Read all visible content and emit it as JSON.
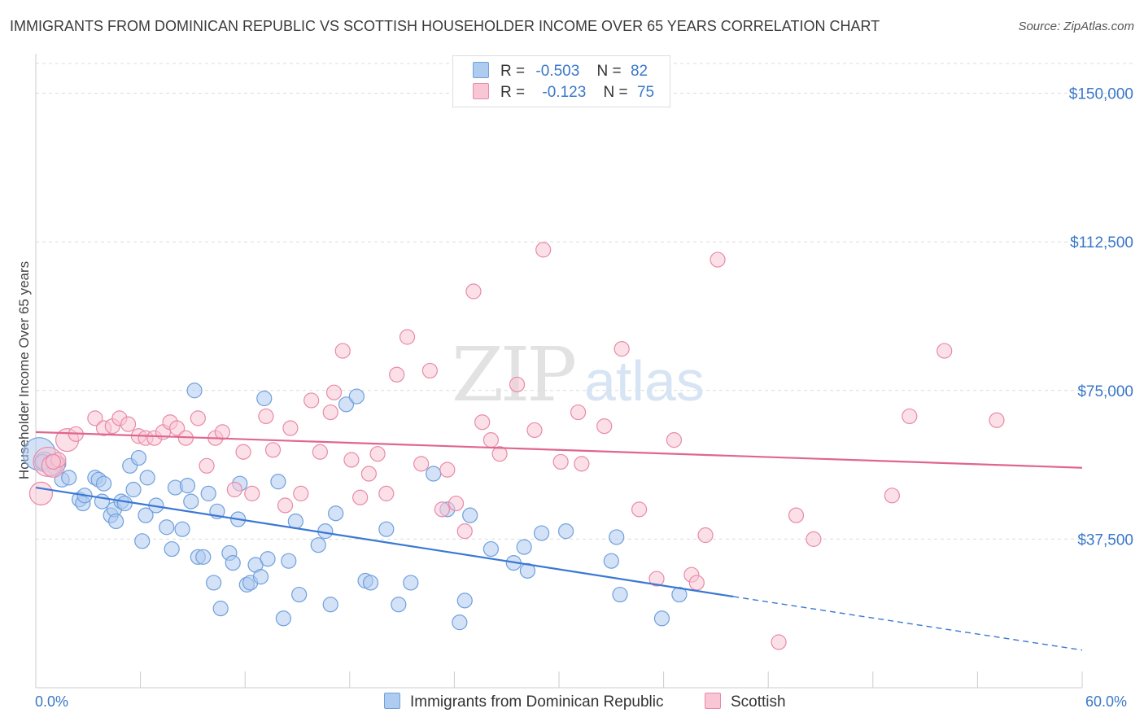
{
  "title": "IMMIGRANTS FROM DOMINICAN REPUBLIC VS SCOTTISH HOUSEHOLDER INCOME OVER 65 YEARS CORRELATION CHART",
  "source": "Source: ZipAtlas.com",
  "watermark": "ZIPatlas",
  "legend_stats": [
    {
      "r_label": "R =",
      "r_value": "-0.503",
      "n_label": "N =",
      "n_value": "82",
      "color": "#aecbf0",
      "border": "#6fa0dc"
    },
    {
      "r_label": "R =",
      "r_value": "-0.123",
      "n_label": "N =",
      "n_value": "75",
      "color": "#f9c6d6",
      "border": "#e88aa8"
    }
  ],
  "bottom_legend": [
    {
      "label": "Immigrants from Dominican Republic",
      "color": "#aecbf0"
    },
    {
      "label": "Scottish",
      "color": "#f9c6d6"
    }
  ],
  "chart_data": {
    "type": "scatter",
    "title": "IMMIGRANTS FROM DOMINICAN REPUBLIC VS SCOTTISH HOUSEHOLDER INCOME OVER 65 YEARS CORRELATION CHART",
    "xlabel": "",
    "ylabel": "Householder Income Over 65 years",
    "xlim": [
      0,
      60
    ],
    "ylim": [
      0,
      157500
    ],
    "x_tick_labels": [
      "0.0%",
      "60.0%"
    ],
    "y_ticks": [
      37500,
      75000,
      112500,
      150000
    ],
    "y_tick_labels": [
      "$37,500",
      "$75,000",
      "$112,500",
      "$150,000"
    ],
    "grid": "horizontal dashed",
    "legend_position": "top-center",
    "series": [
      {
        "name": "Immigrants from Dominican Republic",
        "color": "#6fa0dc",
        "fill": "#aecbf0",
        "trend": {
          "x0": 0,
          "y0": 50500,
          "x1": 40,
          "y1": 23000,
          "dash_to_x": 60,
          "dash_to_y": 9500
        },
        "points": [
          [
            0.2,
            59000
          ],
          [
            0.5,
            57000
          ],
          [
            0.9,
            56000
          ],
          [
            1.1,
            55500
          ],
          [
            1.5,
            52500
          ],
          [
            1.9,
            53000
          ],
          [
            2.5,
            47500
          ],
          [
            2.7,
            46500
          ],
          [
            2.8,
            48500
          ],
          [
            3.4,
            53000
          ],
          [
            3.6,
            52500
          ],
          [
            3.8,
            47000
          ],
          [
            3.9,
            51500
          ],
          [
            4.3,
            43500
          ],
          [
            4.5,
            45000
          ],
          [
            4.6,
            42000
          ],
          [
            4.9,
            47000
          ],
          [
            5.1,
            46500
          ],
          [
            5.4,
            56000
          ],
          [
            5.6,
            50000
          ],
          [
            5.9,
            58000
          ],
          [
            6.1,
            37000
          ],
          [
            6.3,
            43500
          ],
          [
            6.4,
            53000
          ],
          [
            6.9,
            46000
          ],
          [
            7.5,
            40500
          ],
          [
            7.8,
            35000
          ],
          [
            8.0,
            50500
          ],
          [
            8.4,
            40000
          ],
          [
            8.7,
            51000
          ],
          [
            8.9,
            47000
          ],
          [
            9.1,
            75000
          ],
          [
            9.3,
            33000
          ],
          [
            9.6,
            33000
          ],
          [
            9.9,
            49000
          ],
          [
            10.2,
            26500
          ],
          [
            10.4,
            44500
          ],
          [
            10.6,
            20000
          ],
          [
            11.1,
            34000
          ],
          [
            11.3,
            31500
          ],
          [
            11.6,
            42500
          ],
          [
            11.7,
            51500
          ],
          [
            12.1,
            26000
          ],
          [
            12.3,
            26500
          ],
          [
            12.6,
            31000
          ],
          [
            12.9,
            28000
          ],
          [
            13.1,
            73000
          ],
          [
            13.3,
            32500
          ],
          [
            13.9,
            52000
          ],
          [
            14.2,
            17500
          ],
          [
            14.5,
            32000
          ],
          [
            14.9,
            42000
          ],
          [
            15.1,
            23500
          ],
          [
            16.2,
            36000
          ],
          [
            16.6,
            39500
          ],
          [
            16.9,
            21000
          ],
          [
            17.2,
            44000
          ],
          [
            17.8,
            71500
          ],
          [
            18.4,
            73500
          ],
          [
            18.9,
            27000
          ],
          [
            19.2,
            26500
          ],
          [
            20.1,
            40000
          ],
          [
            20.8,
            21000
          ],
          [
            21.5,
            26500
          ],
          [
            22.8,
            54000
          ],
          [
            23.6,
            45000
          ],
          [
            24.3,
            16500
          ],
          [
            24.6,
            22000
          ],
          [
            24.9,
            43500
          ],
          [
            26.1,
            35000
          ],
          [
            27.4,
            31500
          ],
          [
            28.0,
            35500
          ],
          [
            28.2,
            29500
          ],
          [
            29.0,
            39000
          ],
          [
            30.4,
            39500
          ],
          [
            33.0,
            32000
          ],
          [
            33.3,
            38000
          ],
          [
            33.5,
            23500
          ],
          [
            35.9,
            17500
          ],
          [
            36.9,
            23500
          ],
          [
            0.4,
            57000
          ],
          [
            1.3,
            56500
          ]
        ],
        "sizes": {
          "0": 20,
          "1": 12,
          "2": 12
        }
      },
      {
        "name": "Scottish",
        "color": "#e88aa8",
        "fill": "#f9c6d6",
        "trend": {
          "x0": 0,
          "y0": 64500,
          "x1": 60,
          "y1": 55500
        },
        "points": [
          [
            0.3,
            49000
          ],
          [
            0.7,
            57000
          ],
          [
            1.0,
            56000
          ],
          [
            1.3,
            57500
          ],
          [
            1.8,
            62500
          ],
          [
            2.3,
            64000
          ],
          [
            3.4,
            68000
          ],
          [
            3.9,
            65500
          ],
          [
            4.4,
            66000
          ],
          [
            4.8,
            68000
          ],
          [
            5.3,
            66500
          ],
          [
            5.9,
            63500
          ],
          [
            6.3,
            63000
          ],
          [
            6.8,
            63000
          ],
          [
            7.3,
            64500
          ],
          [
            7.7,
            67000
          ],
          [
            8.1,
            65500
          ],
          [
            8.6,
            63000
          ],
          [
            9.3,
            68000
          ],
          [
            9.8,
            56000
          ],
          [
            10.3,
            63000
          ],
          [
            10.7,
            64500
          ],
          [
            11.4,
            50000
          ],
          [
            11.9,
            59500
          ],
          [
            12.4,
            49000
          ],
          [
            13.2,
            68500
          ],
          [
            13.6,
            60000
          ],
          [
            14.3,
            46000
          ],
          [
            14.6,
            65500
          ],
          [
            15.2,
            49000
          ],
          [
            15.8,
            72500
          ],
          [
            16.3,
            59500
          ],
          [
            16.9,
            69500
          ],
          [
            17.1,
            74500
          ],
          [
            17.6,
            85000
          ],
          [
            18.1,
            57500
          ],
          [
            18.6,
            48000
          ],
          [
            19.1,
            54000
          ],
          [
            19.6,
            59000
          ],
          [
            20.1,
            49000
          ],
          [
            20.7,
            79000
          ],
          [
            21.3,
            88500
          ],
          [
            22.1,
            56500
          ],
          [
            22.6,
            80000
          ],
          [
            23.3,
            45000
          ],
          [
            23.6,
            55000
          ],
          [
            24.1,
            46500
          ],
          [
            24.6,
            39500
          ],
          [
            25.1,
            100000
          ],
          [
            25.6,
            67000
          ],
          [
            26.1,
            62500
          ],
          [
            26.6,
            59000
          ],
          [
            27.6,
            76500
          ],
          [
            28.6,
            65000
          ],
          [
            29.1,
            110500
          ],
          [
            30.1,
            57000
          ],
          [
            31.1,
            69500
          ],
          [
            31.3,
            56500
          ],
          [
            32.6,
            66000
          ],
          [
            33.6,
            85500
          ],
          [
            34.6,
            45000
          ],
          [
            35.6,
            27500
          ],
          [
            36.6,
            62500
          ],
          [
            37.6,
            28500
          ],
          [
            37.9,
            26500
          ],
          [
            38.4,
            38500
          ],
          [
            39.1,
            108000
          ],
          [
            42.6,
            11500
          ],
          [
            43.6,
            43500
          ],
          [
            44.6,
            37500
          ],
          [
            49.1,
            48500
          ],
          [
            50.1,
            68500
          ],
          [
            52.1,
            85000
          ],
          [
            55.1,
            67500
          ],
          [
            1.0,
            57000
          ]
        ],
        "sizes": {
          "0": 14,
          "1": 18,
          "2": 14,
          "4": 14
        }
      }
    ]
  }
}
